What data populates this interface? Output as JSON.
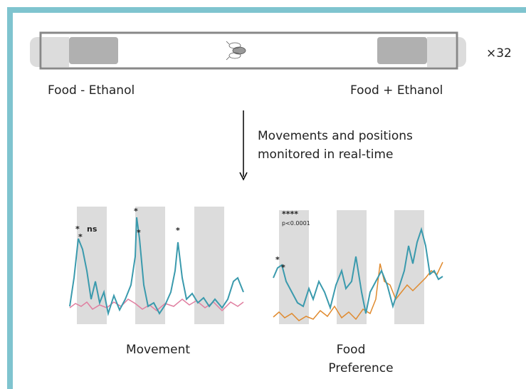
{
  "tube": {
    "multiplier": "×32",
    "left_label": "Food - Ethanol",
    "right_label": "Food + Ethanol"
  },
  "arrow_label": [
    "Movements and positions",
    "monitored in real-time"
  ],
  "panels": [
    {
      "title": [
        "Movement"
      ],
      "annotations": [
        "*",
        "*",
        "ns",
        "*",
        "*",
        "*"
      ]
    },
    {
      "title": [
        "Food",
        "Preference"
      ],
      "annotations": [
        "****",
        "p<0.0001",
        "*",
        "*"
      ]
    }
  ]
}
